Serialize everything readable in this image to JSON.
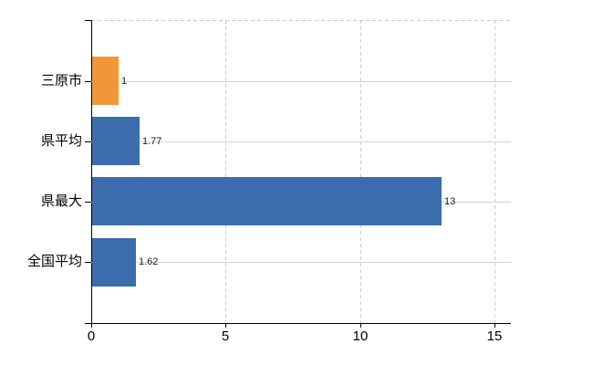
{
  "chart_data": {
    "type": "bar",
    "orientation": "horizontal",
    "categories": [
      "三原市",
      "県平均",
      "県最大",
      "全国平均"
    ],
    "values": [
      1,
      1.77,
      13,
      1.62
    ],
    "value_labels": [
      "1",
      "1.77",
      "13",
      "1.62"
    ],
    "bar_colors": [
      "#f0973a",
      "#3b6cac",
      "#3b6cac",
      "#3b6cac"
    ],
    "x_ticks": [
      0,
      5,
      10,
      15
    ],
    "x_tick_labels": [
      "0",
      "5",
      "10",
      "15"
    ],
    "xlim": [
      0,
      15.6
    ],
    "grid": true,
    "legend": false,
    "title": "",
    "xlabel": "",
    "ylabel": "",
    "colors": {
      "highlight_bar": "#f0973a",
      "default_bar": "#3b6cac",
      "gridline_h": "#d2d7d0",
      "gridline_v": "#cccccc",
      "axis": "#000000",
      "background": "#ffffff"
    }
  }
}
